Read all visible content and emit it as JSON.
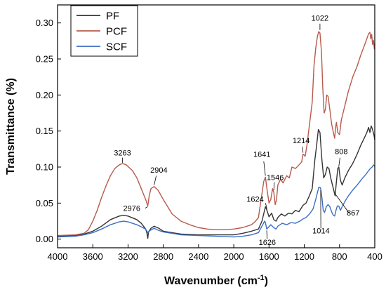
{
  "chart_data": {
    "type": "line",
    "title": "",
    "xlabel": "Wavenumber (cm",
    "xlabel_sup": "-1",
    "xlabel_close": ")",
    "ylabel": "Transmittance (%)",
    "xlim": [
      4000,
      400
    ],
    "ylim": [
      -0.012,
      0.325
    ],
    "x_reversed": true,
    "grid": false,
    "legend": "top-left",
    "x_ticks": [
      4000,
      3600,
      3200,
      2800,
      2400,
      2000,
      1600,
      1200,
      800,
      400
    ],
    "y_ticks": [
      0.0,
      0.05,
      0.1,
      0.15,
      0.2,
      0.25,
      0.3
    ],
    "y_tick_labels": [
      "0.00",
      "0.05",
      "0.10",
      "0.15",
      "0.20",
      "0.25",
      "0.30"
    ],
    "series": [
      {
        "name": "PF",
        "color": "#333333",
        "points": [
          [
            4000,
            0.004
          ],
          [
            3800,
            0.005
          ],
          [
            3700,
            0.007
          ],
          [
            3600,
            0.011
          ],
          [
            3500,
            0.018
          ],
          [
            3400,
            0.027
          ],
          [
            3300,
            0.032
          ],
          [
            3250,
            0.033
          ],
          [
            3200,
            0.032
          ],
          [
            3100,
            0.027
          ],
          [
            3050,
            0.022
          ],
          [
            3000,
            0.014
          ],
          [
            2985,
            0.008
          ],
          [
            2976,
            0.001
          ],
          [
            2968,
            0.01
          ],
          [
            2940,
            0.015
          ],
          [
            2904,
            0.018
          ],
          [
            2850,
            0.015
          ],
          [
            2800,
            0.011
          ],
          [
            2700,
            0.009
          ],
          [
            2600,
            0.007
          ],
          [
            2400,
            0.006
          ],
          [
            2200,
            0.006
          ],
          [
            2000,
            0.006
          ],
          [
            1900,
            0.008
          ],
          [
            1800,
            0.011
          ],
          [
            1720,
            0.014
          ],
          [
            1680,
            0.025
          ],
          [
            1641,
            0.045
          ],
          [
            1624,
            0.04
          ],
          [
            1600,
            0.031
          ],
          [
            1570,
            0.036
          ],
          [
            1546,
            0.027
          ],
          [
            1520,
            0.025
          ],
          [
            1500,
            0.03
          ],
          [
            1460,
            0.035
          ],
          [
            1420,
            0.032
          ],
          [
            1380,
            0.036
          ],
          [
            1340,
            0.035
          ],
          [
            1300,
            0.04
          ],
          [
            1260,
            0.038
          ],
          [
            1214,
            0.047
          ],
          [
            1180,
            0.05
          ],
          [
            1150,
            0.058
          ],
          [
            1110,
            0.07
          ],
          [
            1080,
            0.11
          ],
          [
            1060,
            0.13
          ],
          [
            1040,
            0.152
          ],
          [
            1022,
            0.148
          ],
          [
            1000,
            0.11
          ],
          [
            980,
            0.085
          ],
          [
            960,
            0.09
          ],
          [
            940,
            0.1
          ],
          [
            920,
            0.098
          ],
          [
            900,
            0.085
          ],
          [
            880,
            0.075
          ],
          [
            860,
            0.065
          ],
          [
            850,
            0.06
          ],
          [
            835,
            0.08
          ],
          [
            820,
            0.098
          ],
          [
            808,
            0.1
          ],
          [
            790,
            0.082
          ],
          [
            770,
            0.075
          ],
          [
            740,
            0.085
          ],
          [
            700,
            0.095
          ],
          [
            650,
            0.105
          ],
          [
            600,
            0.118
          ],
          [
            560,
            0.13
          ],
          [
            520,
            0.14
          ],
          [
            490,
            0.148
          ],
          [
            470,
            0.155
          ],
          [
            455,
            0.148
          ],
          [
            440,
            0.157
          ],
          [
            425,
            0.152
          ],
          [
            410,
            0.145
          ],
          [
            400,
            0.138
          ]
        ]
      },
      {
        "name": "PCF",
        "color": "#b85a4c",
        "points": [
          [
            4000,
            0.005
          ],
          [
            3800,
            0.006
          ],
          [
            3700,
            0.008
          ],
          [
            3650,
            0.013
          ],
          [
            3600,
            0.025
          ],
          [
            3550,
            0.04
          ],
          [
            3500,
            0.058
          ],
          [
            3450,
            0.074
          ],
          [
            3400,
            0.088
          ],
          [
            3350,
            0.098
          ],
          [
            3300,
            0.103
          ],
          [
            3263,
            0.105
          ],
          [
            3220,
            0.103
          ],
          [
            3150,
            0.095
          ],
          [
            3100,
            0.085
          ],
          [
            3050,
            0.07
          ],
          [
            3000,
            0.055
          ],
          [
            2976,
            0.046
          ],
          [
            2960,
            0.06
          ],
          [
            2940,
            0.07
          ],
          [
            2904,
            0.073
          ],
          [
            2860,
            0.068
          ],
          [
            2800,
            0.055
          ],
          [
            2750,
            0.045
          ],
          [
            2700,
            0.035
          ],
          [
            2600,
            0.025
          ],
          [
            2500,
            0.02
          ],
          [
            2400,
            0.016
          ],
          [
            2300,
            0.014
          ],
          [
            2200,
            0.013
          ],
          [
            2100,
            0.013
          ],
          [
            2000,
            0.014
          ],
          [
            1900,
            0.016
          ],
          [
            1800,
            0.02
          ],
          [
            1760,
            0.024
          ],
          [
            1720,
            0.03
          ],
          [
            1690,
            0.055
          ],
          [
            1660,
            0.08
          ],
          [
            1641,
            0.086
          ],
          [
            1624,
            0.07
          ],
          [
            1600,
            0.05
          ],
          [
            1580,
            0.055
          ],
          [
            1560,
            0.07
          ],
          [
            1546,
            0.065
          ],
          [
            1530,
            0.048
          ],
          [
            1515,
            0.055
          ],
          [
            1500,
            0.075
          ],
          [
            1470,
            0.083
          ],
          [
            1440,
            0.078
          ],
          [
            1400,
            0.088
          ],
          [
            1370,
            0.085
          ],
          [
            1340,
            0.1
          ],
          [
            1300,
            0.098
          ],
          [
            1260,
            0.103
          ],
          [
            1230,
            0.107
          ],
          [
            1214,
            0.118
          ],
          [
            1190,
            0.115
          ],
          [
            1170,
            0.13
          ],
          [
            1140,
            0.16
          ],
          [
            1110,
            0.19
          ],
          [
            1090,
            0.24
          ],
          [
            1070,
            0.265
          ],
          [
            1050,
            0.282
          ],
          [
            1035,
            0.288
          ],
          [
            1022,
            0.286
          ],
          [
            1005,
            0.26
          ],
          [
            990,
            0.21
          ],
          [
            975,
            0.175
          ],
          [
            960,
            0.18
          ],
          [
            945,
            0.2
          ],
          [
            930,
            0.198
          ],
          [
            910,
            0.18
          ],
          [
            890,
            0.16
          ],
          [
            870,
            0.148
          ],
          [
            855,
            0.14
          ],
          [
            845,
            0.155
          ],
          [
            835,
            0.162
          ],
          [
            820,
            0.148
          ],
          [
            800,
            0.145
          ],
          [
            780,
            0.165
          ],
          [
            750,
            0.18
          ],
          [
            700,
            0.205
          ],
          [
            650,
            0.225
          ],
          [
            600,
            0.24
          ],
          [
            560,
            0.255
          ],
          [
            520,
            0.268
          ],
          [
            490,
            0.278
          ],
          [
            470,
            0.285
          ],
          [
            455,
            0.287
          ],
          [
            445,
            0.278
          ],
          [
            435,
            0.284
          ],
          [
            425,
            0.27
          ],
          [
            415,
            0.276
          ],
          [
            405,
            0.264
          ],
          [
            400,
            0.27
          ]
        ]
      },
      {
        "name": "SCF",
        "color": "#3b6fc4",
        "points": [
          [
            4000,
            0.003
          ],
          [
            3800,
            0.004
          ],
          [
            3700,
            0.006
          ],
          [
            3600,
            0.009
          ],
          [
            3500,
            0.014
          ],
          [
            3400,
            0.02
          ],
          [
            3300,
            0.024
          ],
          [
            3250,
            0.025
          ],
          [
            3200,
            0.024
          ],
          [
            3100,
            0.02
          ],
          [
            3000,
            0.014
          ],
          [
            2976,
            0.009
          ],
          [
            2950,
            0.012
          ],
          [
            2904,
            0.015
          ],
          [
            2850,
            0.012
          ],
          [
            2800,
            0.01
          ],
          [
            2700,
            0.008
          ],
          [
            2600,
            0.006
          ],
          [
            2400,
            0.005
          ],
          [
            2200,
            0.004
          ],
          [
            2000,
            0.003
          ],
          [
            1900,
            0.004
          ],
          [
            1800,
            0.006
          ],
          [
            1720,
            0.009
          ],
          [
            1680,
            0.018
          ],
          [
            1650,
            0.025
          ],
          [
            1641,
            0.023
          ],
          [
            1626,
            0.014
          ],
          [
            1610,
            0.016
          ],
          [
            1580,
            0.02
          ],
          [
            1546,
            0.016
          ],
          [
            1520,
            0.014
          ],
          [
            1500,
            0.018
          ],
          [
            1450,
            0.022
          ],
          [
            1400,
            0.02
          ],
          [
            1350,
            0.023
          ],
          [
            1300,
            0.022
          ],
          [
            1250,
            0.025
          ],
          [
            1214,
            0.028
          ],
          [
            1180,
            0.03
          ],
          [
            1140,
            0.035
          ],
          [
            1100,
            0.042
          ],
          [
            1070,
            0.055
          ],
          [
            1050,
            0.065
          ],
          [
            1035,
            0.072
          ],
          [
            1022,
            0.072
          ],
          [
            1014,
            0.07
          ],
          [
            1000,
            0.058
          ],
          [
            985,
            0.04
          ],
          [
            970,
            0.037
          ],
          [
            950,
            0.045
          ],
          [
            930,
            0.048
          ],
          [
            910,
            0.045
          ],
          [
            890,
            0.038
          ],
          [
            870,
            0.033
          ],
          [
            855,
            0.032
          ],
          [
            840,
            0.04
          ],
          [
            825,
            0.046
          ],
          [
            808,
            0.046
          ],
          [
            790,
            0.04
          ],
          [
            770,
            0.045
          ],
          [
            740,
            0.052
          ],
          [
            700,
            0.06
          ],
          [
            650,
            0.068
          ],
          [
            600,
            0.075
          ],
          [
            550,
            0.083
          ],
          [
            500,
            0.09
          ],
          [
            470,
            0.095
          ],
          [
            450,
            0.098
          ],
          [
            430,
            0.1
          ],
          [
            415,
            0.103
          ],
          [
            400,
            0.101
          ]
        ]
      }
    ],
    "annotations": [
      {
        "text": "3263"
      },
      {
        "text": "2904"
      },
      {
        "text": "2976"
      },
      {
        "text": "1641"
      },
      {
        "text": "1546"
      },
      {
        "text": "1214"
      },
      {
        "text": "1022"
      },
      {
        "text": "1624"
      },
      {
        "text": "1626"
      },
      {
        "text": "808"
      },
      {
        "text": "867"
      },
      {
        "text": "1014"
      }
    ]
  }
}
